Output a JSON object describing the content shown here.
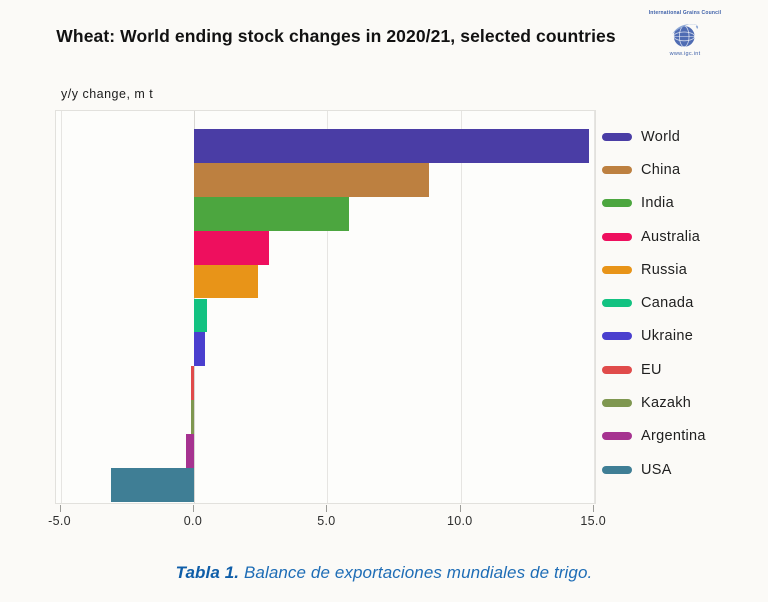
{
  "header": {
    "title": "Wheat: World ending stock changes in 2020/21, selected countries",
    "units_label": "y/y change, m t"
  },
  "logo": {
    "org_name": "International Grains Council",
    "url_text": "www.igc.int",
    "color": "#3c5fa8"
  },
  "chart_data": {
    "type": "bar",
    "orientation": "horizontal",
    "title": "Wheat: World ending stock changes in 2020/21, selected countries",
    "ylabel": "y/y change, m t",
    "xlim": [
      -5.17,
      15.03
    ],
    "x_ticks": [
      -5.0,
      0.0,
      5.0,
      10.0,
      15.0
    ],
    "x_tick_labels": [
      "-5.0",
      "0.0",
      "5.0",
      "10.0",
      "15.0"
    ],
    "grid": true,
    "legend_position": "right",
    "series": [
      {
        "name": "World",
        "value": 14.8,
        "color": "#4a3da5"
      },
      {
        "name": "China",
        "value": 8.8,
        "color": "#bd8040"
      },
      {
        "name": "India",
        "value": 5.8,
        "color": "#4ca63f"
      },
      {
        "name": "Australia",
        "value": 2.8,
        "color": "#ee0f5e"
      },
      {
        "name": "Russia",
        "value": 2.4,
        "color": "#e89418"
      },
      {
        "name": "Canada",
        "value": 0.5,
        "color": "#12c281"
      },
      {
        "name": "Ukraine",
        "value": 0.4,
        "color": "#4a3fce"
      },
      {
        "name": "EU",
        "value": -0.1,
        "color": "#e04b4a"
      },
      {
        "name": "Kazakh",
        "value": -0.1,
        "color": "#7f9750"
      },
      {
        "name": "Argentina",
        "value": -0.3,
        "color": "#a63390"
      },
      {
        "name": "USA",
        "value": -3.1,
        "color": "#3f7e95"
      }
    ]
  },
  "caption": {
    "label": "Tabla 1.",
    "text": "Balance de exportaciones mundiales de trigo."
  }
}
